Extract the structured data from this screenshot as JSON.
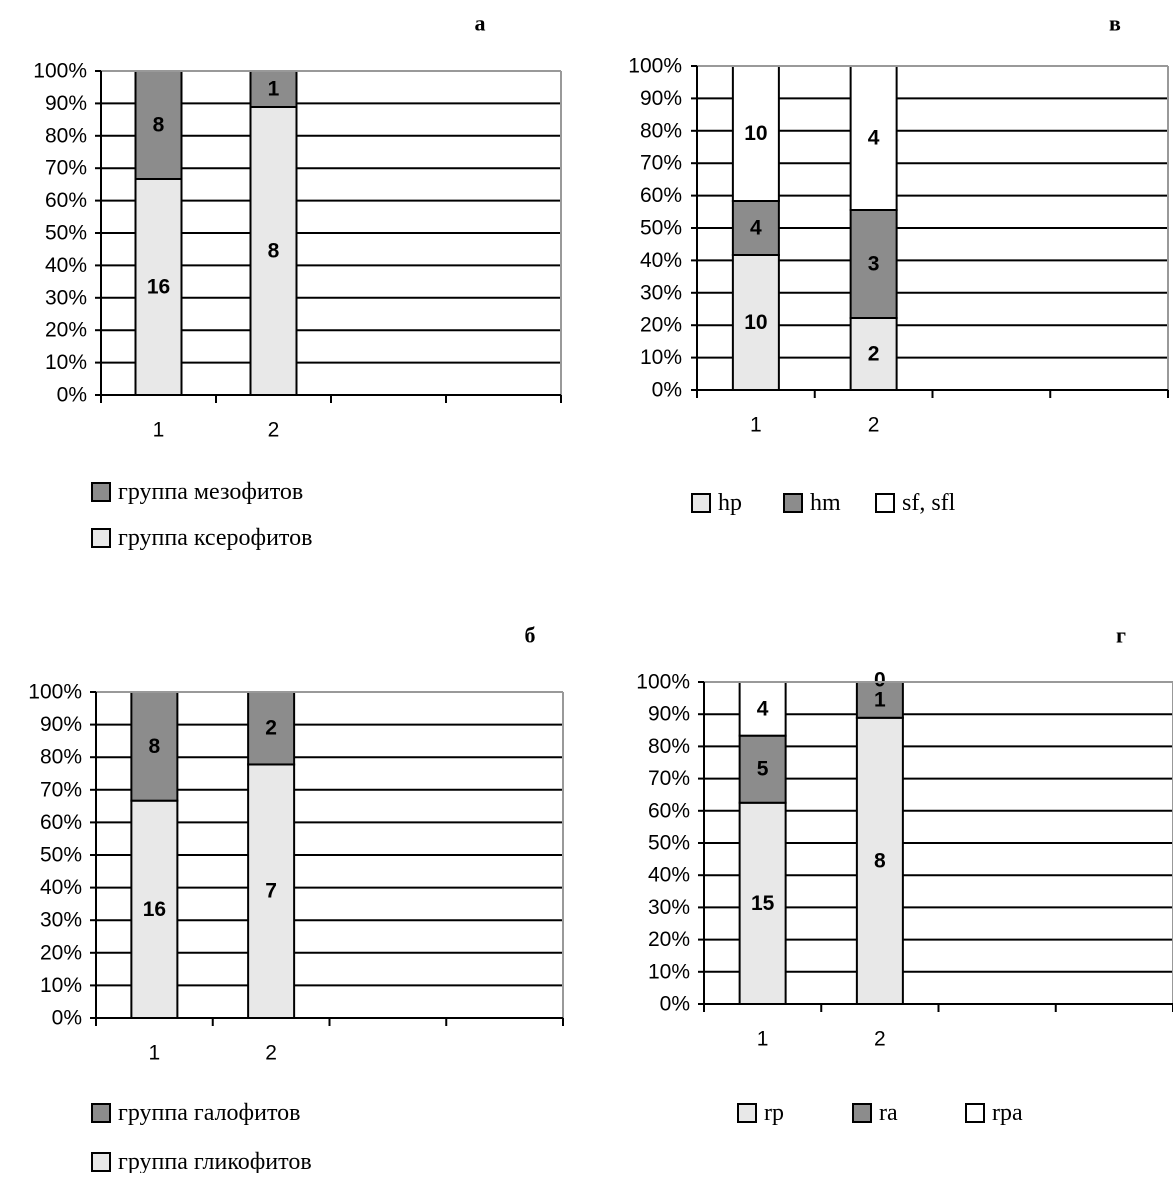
{
  "colors": {
    "light": "#e8e8e8",
    "dark": "#8c8c8c",
    "white": "#ffffff",
    "line": "#000000",
    "frame": "#999999"
  },
  "y_ticks": [
    "0%",
    "10%",
    "20%",
    "30%",
    "40%",
    "50%",
    "60%",
    "70%",
    "80%",
    "90%",
    "100%"
  ],
  "chart_data": [
    {
      "panel": "а",
      "type": "bar",
      "stacked": "percent",
      "categories": [
        "1",
        "2"
      ],
      "series": [
        {
          "name": "группа ксерофитов",
          "color": "light",
          "values": [
            16,
            8
          ]
        },
        {
          "name": "группа мезофитов",
          "color": "dark",
          "values": [
            8,
            1
          ]
        }
      ],
      "legend": {
        "layout": "vertical",
        "order": [
          1,
          0
        ]
      },
      "ylim": [
        0,
        100
      ]
    },
    {
      "panel": "в",
      "type": "bar",
      "stacked": "percent",
      "categories": [
        "1",
        "2"
      ],
      "series": [
        {
          "name": "hp",
          "color": "light",
          "values": [
            10,
            2
          ]
        },
        {
          "name": "hm",
          "color": "dark",
          "values": [
            4,
            3
          ]
        },
        {
          "name": "sf, sfl",
          "color": "white",
          "values": [
            10,
            4
          ]
        }
      ],
      "legend": {
        "layout": "horizontal",
        "order": [
          0,
          1,
          2
        ]
      },
      "ylim": [
        0,
        100
      ]
    },
    {
      "panel": "б",
      "type": "bar",
      "stacked": "percent",
      "categories": [
        "1",
        "2"
      ],
      "series": [
        {
          "name": "группа гликофитов",
          "color": "light",
          "values": [
            16,
            7
          ]
        },
        {
          "name": "группа галофитов",
          "color": "dark",
          "values": [
            8,
            2
          ]
        }
      ],
      "legend": {
        "layout": "vertical",
        "order": [
          1,
          0
        ]
      },
      "ylim": [
        0,
        100
      ]
    },
    {
      "panel": "г",
      "type": "bar",
      "stacked": "percent",
      "categories": [
        "1",
        "2"
      ],
      "series": [
        {
          "name": "rp",
          "color": "light",
          "values": [
            15,
            8
          ]
        },
        {
          "name": "ra",
          "color": "dark",
          "values": [
            5,
            1
          ]
        },
        {
          "name": "rpa",
          "color": "white",
          "values": [
            4,
            0
          ]
        }
      ],
      "legend": {
        "layout": "horizontal",
        "order": [
          0,
          1,
          2
        ]
      },
      "ylim": [
        0,
        100
      ]
    }
  ]
}
